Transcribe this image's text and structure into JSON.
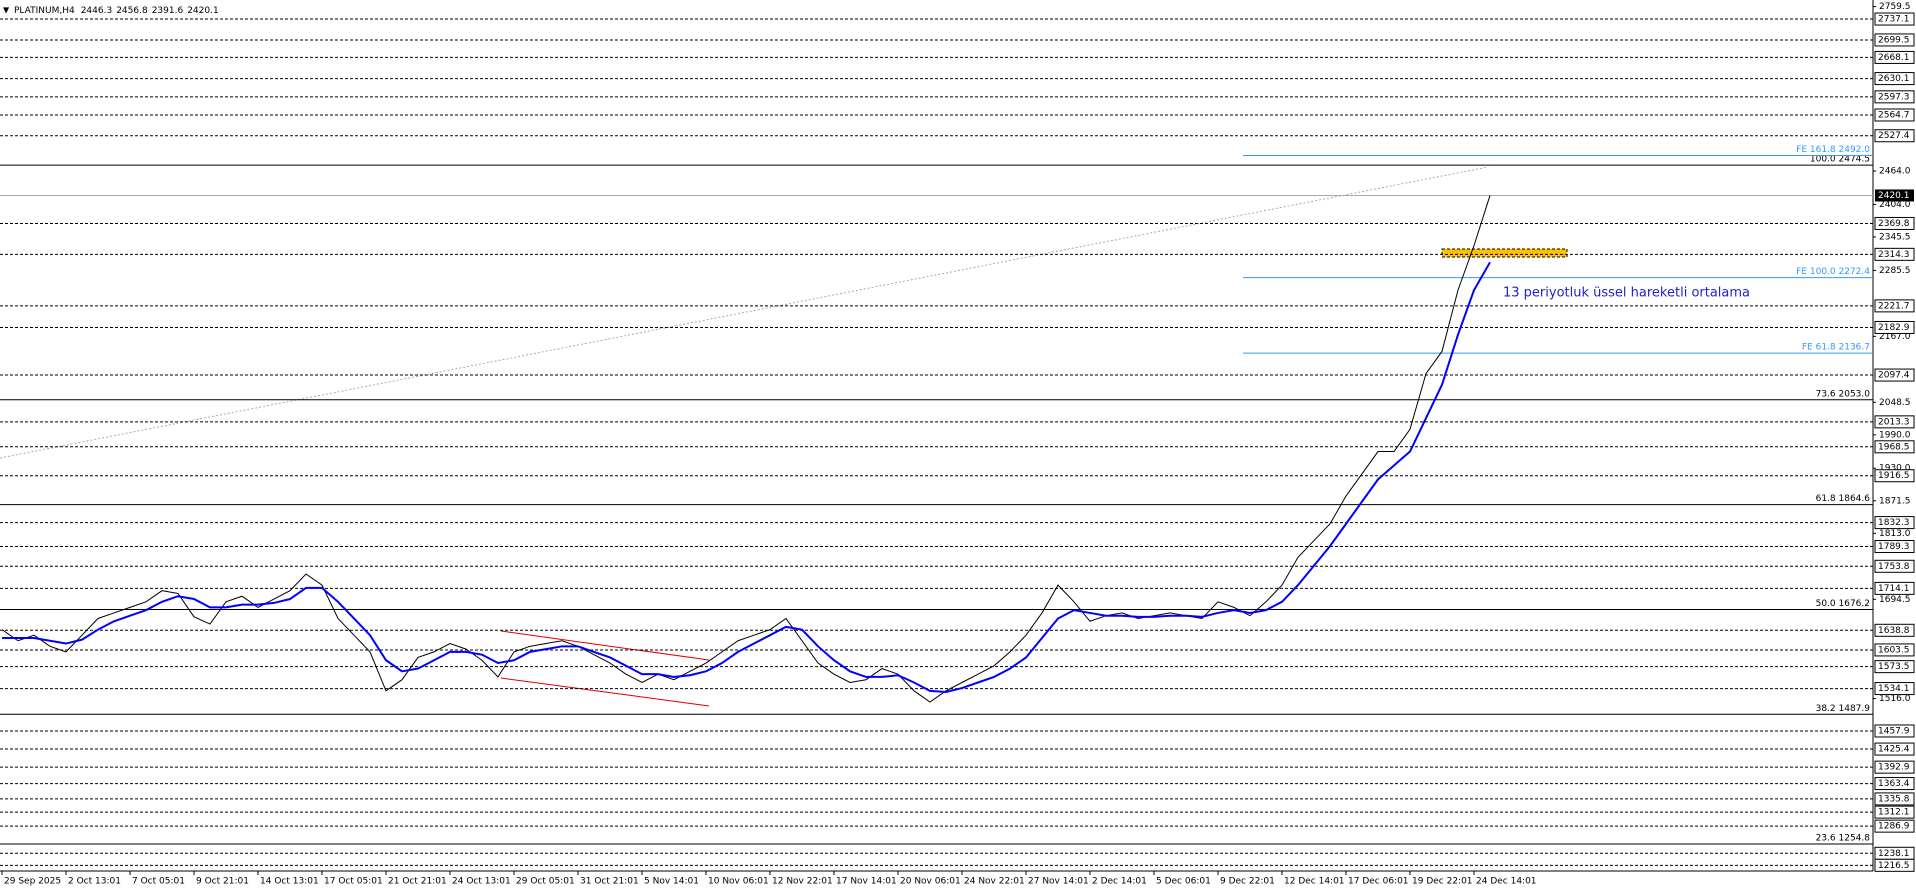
{
  "chart_data": {
    "type": "line",
    "title": "PLATINUM,H4",
    "ohlc": [
      2446.3,
      2456.8,
      2391.6,
      2420.1
    ],
    "current_price": 2420.1,
    "annotation": "13 periyotluk üssel hareketli ortalama",
    "x": [
      0,
      4,
      8,
      12,
      16,
      20,
      24,
      28,
      32,
      36,
      40,
      44,
      48,
      52,
      56,
      60,
      64,
      68,
      72,
      76,
      80,
      84,
      88,
      92,
      96,
      100,
      104,
      108,
      112,
      116,
      120,
      124,
      128,
      132,
      136,
      140,
      144,
      148,
      152,
      156,
      160,
      164,
      168,
      172,
      176,
      180,
      184,
      188,
      192,
      196,
      200,
      204,
      208,
      212,
      216,
      220,
      224,
      228,
      232,
      236,
      240,
      244,
      248,
      252,
      256,
      260,
      264,
      268,
      272,
      276,
      280,
      284,
      288,
      292,
      296,
      300,
      304,
      308,
      312,
      316,
      320,
      324,
      328,
      332,
      336,
      340,
      344,
      348,
      352,
      356,
      360,
      364,
      368,
      372
    ],
    "series": [
      {
        "color": "#000000",
        "values": [
          1640,
          1620,
          1630,
          1610,
          1600,
          1630,
          1660,
          1670,
          1680,
          1690,
          1710,
          1705,
          1663,
          1650,
          1690,
          1700,
          1680,
          1695,
          1710,
          1740,
          1720,
          1660,
          1630,
          1600,
          1530,
          1550,
          1590,
          1600,
          1615,
          1605,
          1585,
          1555,
          1600,
          1610,
          1615,
          1620,
          1610,
          1595,
          1580,
          1560,
          1545,
          1560,
          1550,
          1565,
          1580,
          1600,
          1620,
          1630,
          1640,
          1660,
          1620,
          1580,
          1560,
          1545,
          1550,
          1570,
          1560,
          1530,
          1510,
          1530,
          1545,
          1560,
          1575,
          1600,
          1630,
          1670,
          1720,
          1690,
          1655,
          1665,
          1670,
          1660,
          1665,
          1670,
          1665,
          1660,
          1690,
          1680,
          1665,
          1690,
          1720,
          1770,
          1800,
          1830,
          1880,
          1920,
          1960,
          1960,
          2000,
          2100,
          2140,
          2250,
          2330,
          2420.1
        ]
      },
      {
        "color": "#0000ff",
        "values": [
          1625,
          1625,
          1625,
          1620,
          1615,
          1622,
          1640,
          1655,
          1665,
          1675,
          1690,
          1700,
          1695,
          1680,
          1680,
          1685,
          1685,
          1688,
          1695,
          1715,
          1715,
          1690,
          1660,
          1630,
          1585,
          1565,
          1570,
          1585,
          1600,
          1600,
          1595,
          1580,
          1585,
          1600,
          1605,
          1610,
          1610,
          1600,
          1590,
          1575,
          1560,
          1560,
          1555,
          1558,
          1565,
          1580,
          1600,
          1615,
          1630,
          1645,
          1640,
          1610,
          1585,
          1565,
          1555,
          1555,
          1558,
          1545,
          1530,
          1528,
          1535,
          1545,
          1555,
          1570,
          1590,
          1625,
          1660,
          1675,
          1670,
          1665,
          1665,
          1663,
          1663,
          1665,
          1665,
          1663,
          1670,
          1675,
          1670,
          1675,
          1690,
          1720,
          1755,
          1790,
          1830,
          1870,
          1910,
          1935,
          1960,
          2020,
          2080,
          2170,
          2250,
          2300
        ]
      }
    ],
    "xlim": [
      0,
      468
    ],
    "xticks": [
      {
        "value": 0,
        "label": "29 Sep 2025"
      },
      {
        "value": 16,
        "label": "2 Oct 13:01"
      },
      {
        "value": 32,
        "label": "7 Oct 05:01"
      },
      {
        "value": 48,
        "label": "9 Oct 21:01"
      },
      {
        "value": 64,
        "label": "14 Oct 13:01"
      },
      {
        "value": 80,
        "label": "17 Oct 05:01"
      },
      {
        "value": 96,
        "label": "21 Oct 21:01"
      },
      {
        "value": 112,
        "label": "24 Oct 13:01"
      },
      {
        "value": 128,
        "label": "29 Oct 05:01"
      },
      {
        "value": 144,
        "label": "31 Oct 21:01"
      },
      {
        "value": 160,
        "label": "5 Nov 14:01"
      },
      {
        "value": 176,
        "label": "10 Nov 06:01"
      },
      {
        "value": 192,
        "label": "12 Nov 22:01"
      },
      {
        "value": 208,
        "label": "17 Nov 14:01"
      },
      {
        "value": 224,
        "label": "20 Nov 06:01"
      },
      {
        "value": 240,
        "label": "24 Nov 22:01"
      },
      {
        "value": 256,
        "label": "27 Nov 14:01"
      },
      {
        "value": 272,
        "label": "2 Dec 14:01"
      },
      {
        "value": 288,
        "label": "5 Dec 06:01"
      },
      {
        "value": 304,
        "label": "9 Dec 22:01"
      },
      {
        "value": 320,
        "label": "12 Dec 14:01"
      },
      {
        "value": 336,
        "label": "17 Dec 06:01"
      },
      {
        "value": 352,
        "label": "19 Dec 22:01"
      },
      {
        "value": 368,
        "label": "24 Dec 14:01"
      }
    ],
    "ylim": [
      1206.3,
      2771.3
    ],
    "yticks": [
      2759.5,
      {
        "value": 2464,
        "label": "2464.0"
      },
      {
        "value": 2404,
        "label": "2404.0"
      },
      2345.5,
      2285.5,
      {
        "value": 2167,
        "label": "2167.0"
      },
      2048.5,
      {
        "value": 1990,
        "label": "1990.0"
      },
      {
        "value": 1930,
        "label": "1930.0"
      },
      1871.5,
      {
        "value": 1813,
        "label": "1813.0"
      },
      1694.5,
      {
        "value": 1516,
        "label": "1516.0"
      }
    ],
    "levels": [
      2737.1,
      2699.5,
      2668.1,
      2630.1,
      2597.3,
      2564.7,
      2527.4,
      2369.8,
      2314.3,
      2221.7,
      2182.9,
      2097.4,
      2013.3,
      1968.5,
      1916.5,
      1832.3,
      1789.3,
      1753.8,
      1714.1,
      1638.8,
      1603.5,
      1573.5,
      1534.1,
      1457.9,
      1425.4,
      1392.9,
      1363.4,
      1335.8,
      1312.1,
      1286.9,
      1238.1,
      1216.5
    ],
    "fibo": [
      {
        "value": 2474.5,
        "label": "100.0 2474.5"
      },
      {
        "value": 2053,
        "label": "73.6 2053.0"
      },
      {
        "value": 1864.6,
        "label": "61.8 1864.6"
      },
      {
        "value": 1676.2,
        "label": "50.0 1676.2"
      },
      {
        "value": 1487.9,
        "label": "38.2 1487.9"
      },
      {
        "value": 1254.8,
        "label": "23.6 1254.8"
      }
    ],
    "expansion": [
      {
        "value": 2492,
        "label": "FE 161.8 2492.0"
      },
      {
        "value": 2272.4,
        "label": "FE 100.0 2272.4"
      },
      {
        "value": 2136.7,
        "label": "FE 61.8 2136.7"
      }
    ]
  }
}
